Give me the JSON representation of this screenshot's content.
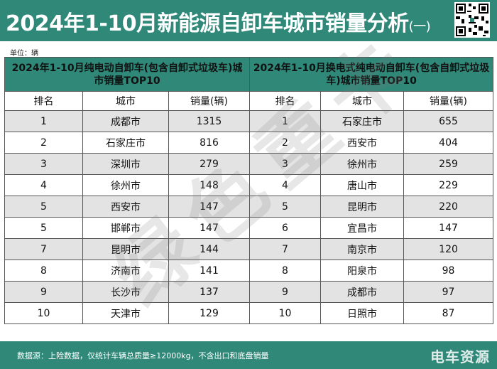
{
  "header": {
    "title": "2024年1-10月新能源自卸车城市销量分析",
    "title_suffix": "(一)"
  },
  "unit_label": "单位：辆",
  "left_table": {
    "title": "2024年1-10月纯电动自卸车(包含自卸式垃圾车)城市销量TOP10",
    "columns": [
      "排名",
      "城市",
      "销量(辆)"
    ],
    "rows": [
      [
        "1",
        "成都市",
        "1315"
      ],
      [
        "2",
        "石家庄市",
        "816"
      ],
      [
        "3",
        "深圳市",
        "279"
      ],
      [
        "4",
        "徐州市",
        "148"
      ],
      [
        "5",
        "西安市",
        "147"
      ],
      [
        "5",
        "邯郸市",
        "147"
      ],
      [
        "7",
        "昆明市",
        "144"
      ],
      [
        "8",
        "济南市",
        "141"
      ],
      [
        "9",
        "长沙市",
        "137"
      ],
      [
        "10",
        "天津市",
        "129"
      ]
    ]
  },
  "right_table": {
    "title": "2024年1-10月换电式纯电动自卸车(包含自卸式垃圾车)城市销量TOP10",
    "columns": [
      "排名",
      "城市",
      "销量(辆)"
    ],
    "rows": [
      [
        "1",
        "石家庄市",
        "655"
      ],
      [
        "2",
        "西安市",
        "404"
      ],
      [
        "3",
        "徐州市",
        "259"
      ],
      [
        "4",
        "唐山市",
        "229"
      ],
      [
        "5",
        "昆明市",
        "220"
      ],
      [
        "6",
        "宜昌市",
        "147"
      ],
      [
        "7",
        "南京市",
        "120"
      ],
      [
        "8",
        "阳泉市",
        "98"
      ],
      [
        "9",
        "成都市",
        "97"
      ],
      [
        "10",
        "日照市",
        "87"
      ]
    ]
  },
  "watermark_text": "绿色重卡",
  "footer": {
    "source": "数据源：上险数据，仅统计车辆总质量≥12000kg，不含出口和底盘销量",
    "logo": "电车资源"
  },
  "colors": {
    "brand": "#2f8878",
    "row_shade": "#e3e3e3"
  }
}
